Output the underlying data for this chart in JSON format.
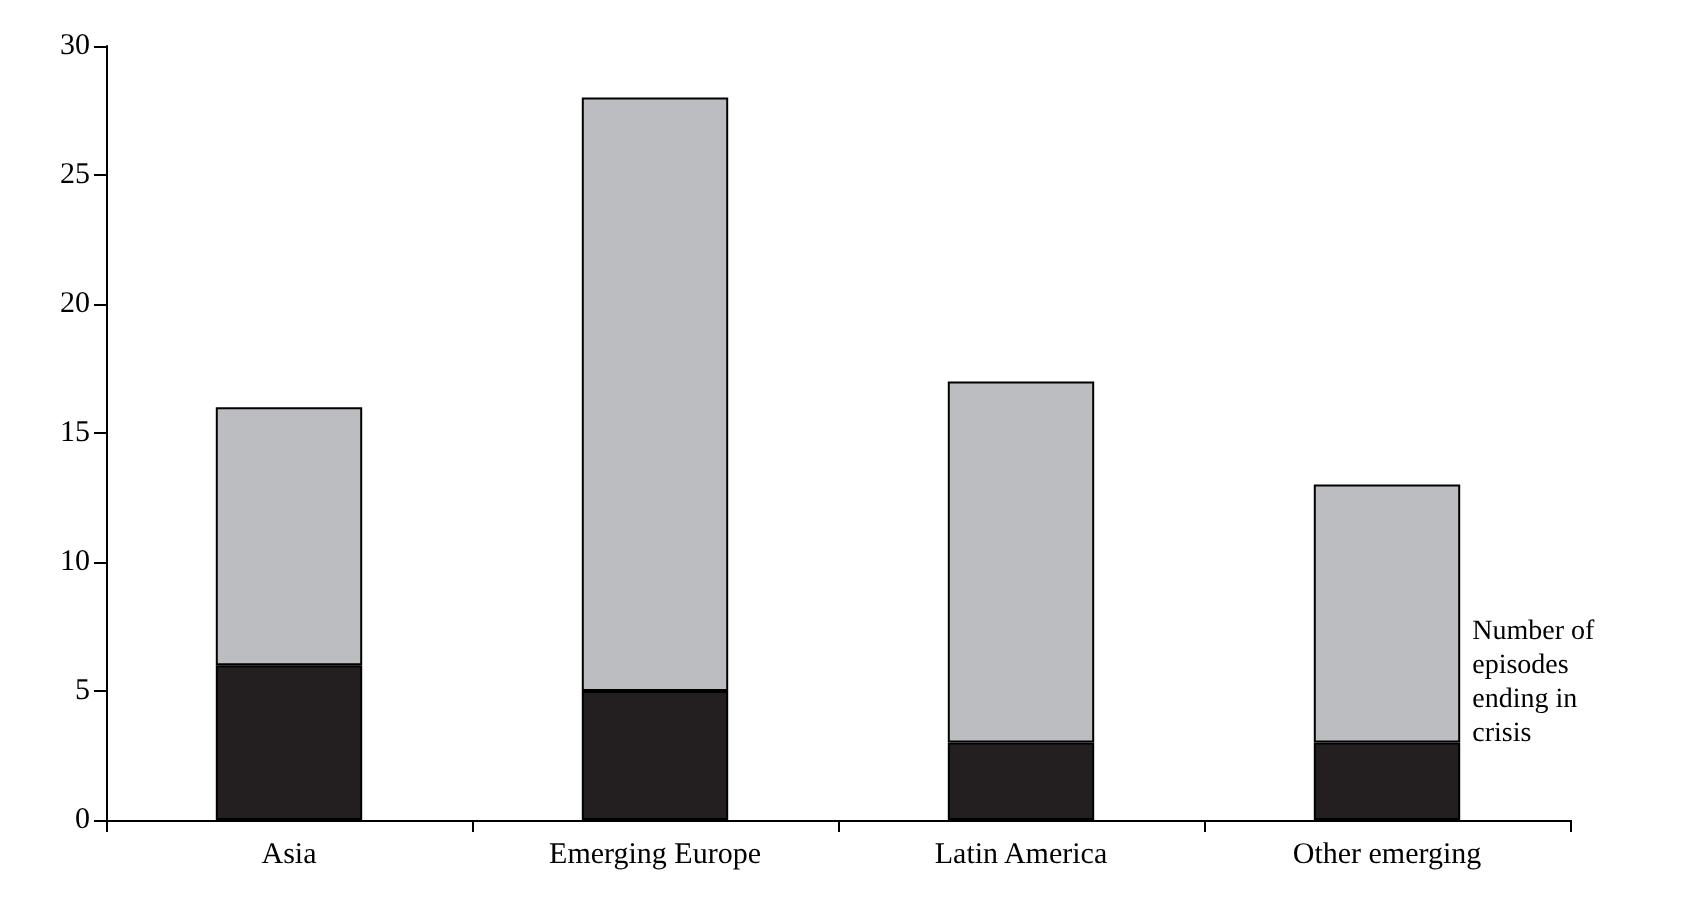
{
  "chart_data": {
    "type": "bar",
    "stacked": true,
    "categories": [
      "Asia",
      "Emerging Europe",
      "Latin America",
      "Other emerging"
    ],
    "series": [
      {
        "name": "Number of episodes ending in crisis",
        "color": "#231f20",
        "values": [
          6,
          5,
          3,
          3
        ]
      },
      {
        "color": "#bcbdc0",
        "values": [
          10,
          23,
          14,
          10
        ]
      }
    ],
    "ylim": [
      0,
      30
    ],
    "yticks": [
      0,
      5,
      10,
      15,
      20,
      25,
      30
    ],
    "grid": false,
    "legend": false
  }
}
